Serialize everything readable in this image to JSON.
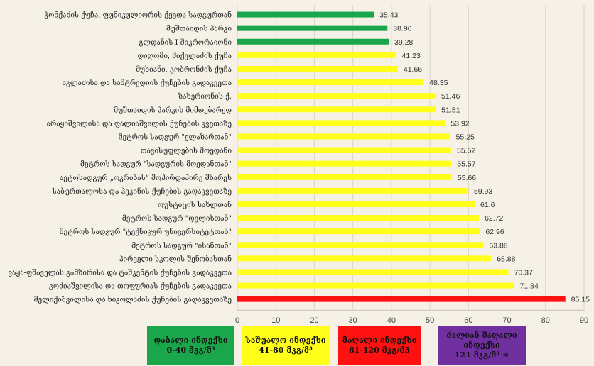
{
  "chart_data": {
    "type": "bar",
    "orientation": "horizontal",
    "title": "",
    "xlabel": "",
    "ylabel": "",
    "xlim": [
      0,
      90
    ],
    "x_ticks": [
      0,
      10,
      20,
      30,
      40,
      50,
      60,
      70,
      80,
      90
    ],
    "grid": true,
    "categories": [
      "ჭონქაძის ქუჩა, ფუნიკულიორის ქვედა სადგურთან",
      "მუშთაიდის პარკი",
      "გლდანის I მიკრორაიონი",
      "დიღომი, მიქელაძის ქუჩა",
      "მუხიანი, გობრონძის ქუჩა",
      "აგლაძისა და სამტრედიის ქუჩების გადაკვეთა",
      "ზახერიონის ქ.",
      "მუშთაიდის პარკის მიმდებარედ",
      "არაყიშვილისა და ფალიაშვილის ქუჩების კვეთაზე",
      "მეტროს სადგურ \"ელაზართან\"",
      "თავისუფლების მოედანი",
      "მეტროს სადგურ \"სადგურის მოედანთან\"",
      "ავტოსადგურ „ოკრიბას“ მოპირდაპირე მხარეს",
      "საბურთალოსა და პეკინის ქუჩების გადაკვეთაზე",
      "ოუსტიცის სახლთან",
      "მეტროს სადგურ \"დელისთან\"",
      "მეტროს სადგურ \"ტექნიკურ უნივერსიტეტთან\"",
      "მეტროს სადგურ \"ისანთან\"",
      "პირველი სკოლის შენობასთან",
      "ვაჟა-ფშაველას გამზირისა და ტაშკენტის ქუჩების გადაკვეთა",
      "გოძიაშვილისა და თოფურიას ქუჩების გადაკვეთა",
      "მელიქიშვილისა და ნიკოლაძის ქუჩების გადაკვეთაზე"
    ],
    "values": [
      35.43,
      38.96,
      39.28,
      41.23,
      41.66,
      48.35,
      51.46,
      51.51,
      53.92,
      55.25,
      55.52,
      55.57,
      55.66,
      59.93,
      61.6,
      62.72,
      62.96,
      63.88,
      65.88,
      70.37,
      71.84,
      85.15
    ],
    "value_labels": [
      "35.43",
      "38.96",
      "39.28",
      "41.23",
      "41.66",
      "48.35",
      "51.46",
      "51.51",
      "53.92",
      "55.25",
      "55.52",
      "55.57",
      "55.66",
      "59.93",
      "61.6",
      "62.72",
      "62.96",
      "63.88",
      "65.88",
      "70.37",
      "71.84",
      "85.15"
    ],
    "bands": [
      {
        "min": 0,
        "max": 40,
        "color": "#1aa64a"
      },
      {
        "min": 40,
        "max": 80,
        "color": "#ffff1a"
      },
      {
        "min": 80,
        "max": 120,
        "color": "#ff1111"
      },
      {
        "min": 120,
        "max": null,
        "color": "#7030a0"
      }
    ]
  },
  "legend": [
    {
      "line1": "დაბალი ინდექსი",
      "line2": "0-40  მკგ/მ³",
      "color": "#1aa64a"
    },
    {
      "line1": "საშუალო ინდექსი",
      "line2": "41-80 მკგ/მ³",
      "color": "#ffff1a"
    },
    {
      "line1": "მაღალი ინდექსი",
      "line2": "81-120 მკგ/მ3",
      "color": "#ff1111"
    },
    {
      "line1": "ძალიან მაღალი ინდექსი",
      "line2": "121 მკგ/მ³ ≤",
      "color": "#7030a0"
    }
  ]
}
